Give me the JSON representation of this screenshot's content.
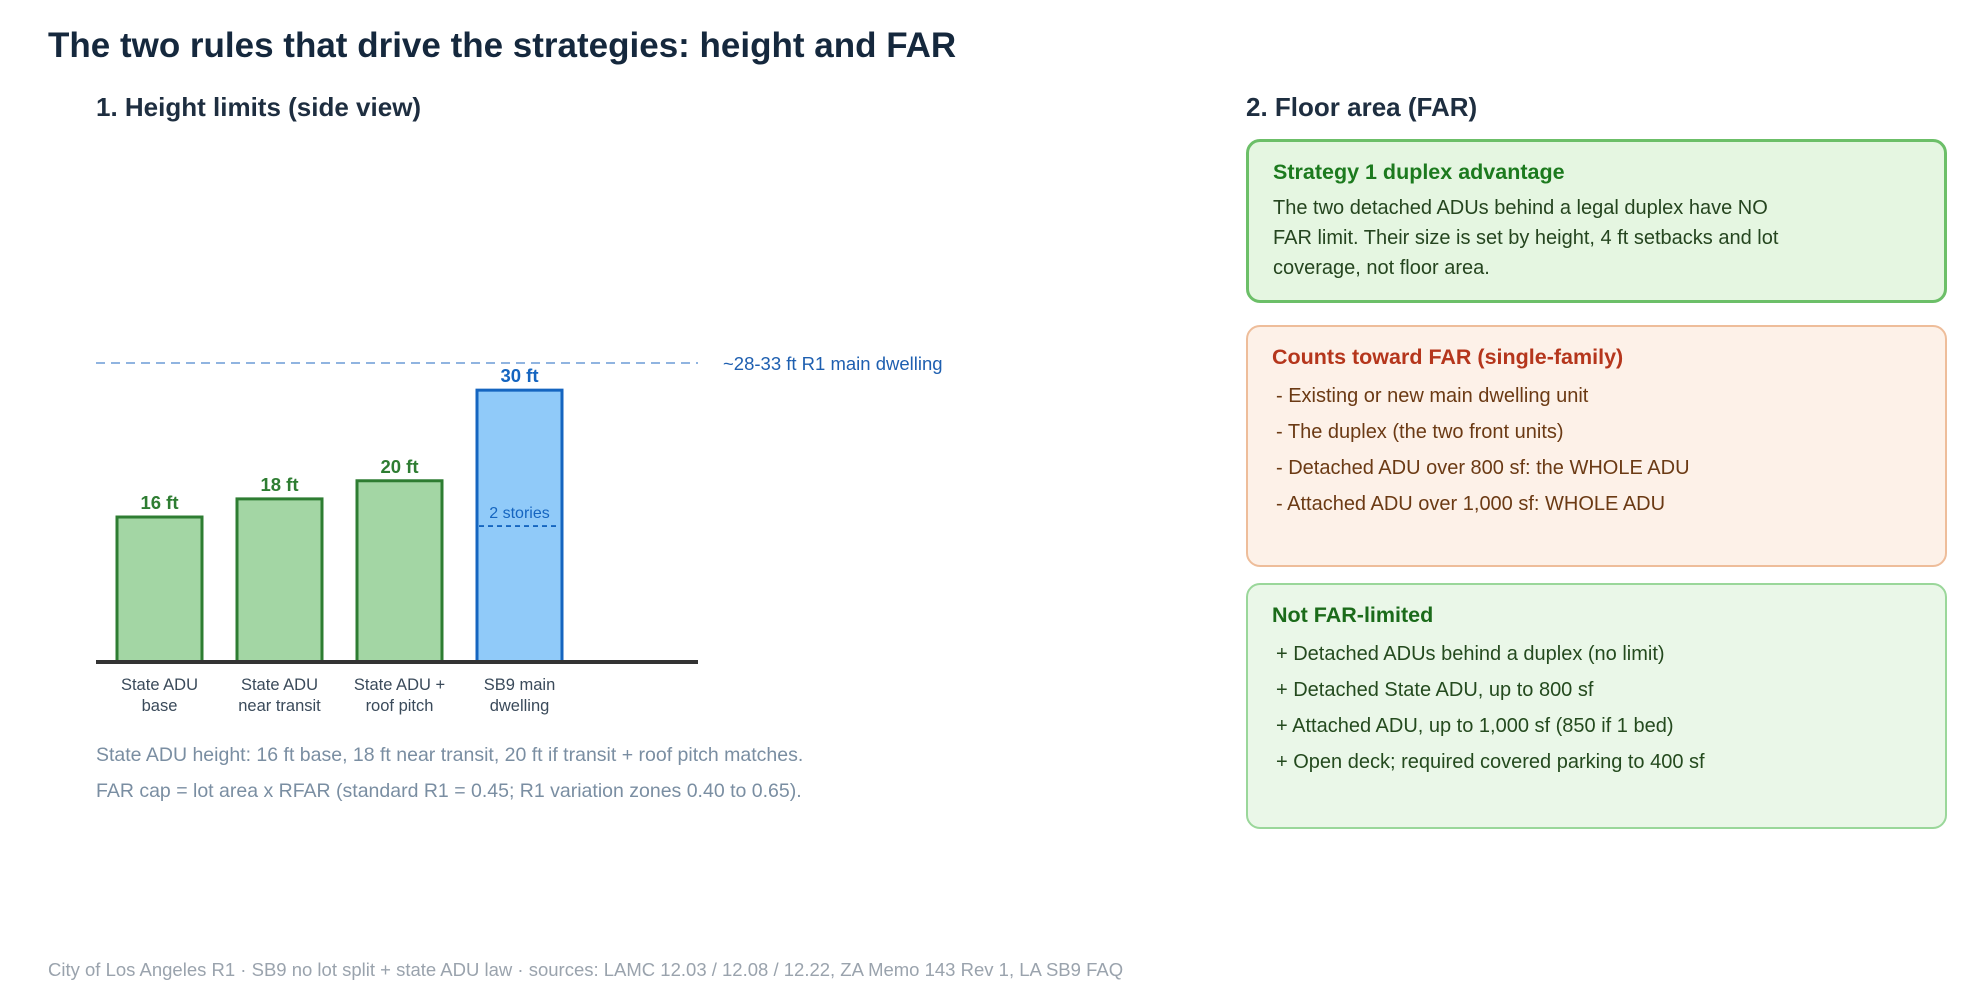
{
  "title": "The two rules that drive the strategies: height and FAR",
  "height_section": {
    "title": "1. Height limits (side view)",
    "notes": [
      "State ADU height: 16 ft base, 18 ft near transit, 20 ft if transit + roof pitch matches.",
      "FAR cap = lot area x RFAR (standard R1 = 0.45; R1 variation zones 0.40 to 0.65)."
    ]
  },
  "chart_data": {
    "type": "bar",
    "title": "",
    "xlabel": "",
    "ylabel": "",
    "ylim": [
      0,
      40.5
    ],
    "categories": [
      [
        "State ADU",
        "base"
      ],
      [
        "State ADU",
        "near transit"
      ],
      [
        "State ADU +",
        "roof pitch"
      ],
      [
        "SB9 main",
        "dwelling"
      ]
    ],
    "values": [
      16,
      18,
      20,
      30
    ],
    "value_labels": [
      "16 ft",
      "18 ft",
      "20 ft",
      "30 ft"
    ],
    "colors": {
      "adu_fill": "#a3d6a4",
      "adu_stroke": "#2e7d32",
      "adu_label": "#2e7d32",
      "main_fill": "#90caf9",
      "main_stroke": "#1565c0",
      "main_label": "#1565c0",
      "reference_line": "#90b4e0",
      "reference_text": "#1e5fb0",
      "ground": "#333333"
    },
    "bar_series": [
      "adu",
      "adu",
      "adu",
      "main"
    ],
    "reference_line": {
      "value": 33,
      "label": "~28-33 ft R1 main dwelling"
    },
    "stories_marker": {
      "value": 15,
      "label": "2 stories",
      "bar_index": 3
    },
    "grid": false,
    "legend": "none"
  },
  "far_section": {
    "title": "2. Floor area (FAR)",
    "boxes": [
      {
        "title": "Strategy 1 duplex advantage",
        "body": "The two detached ADUs behind a legal duplex have NO FAR limit. Their size is set by height, 4 ft setbacks and lot coverage, not floor area."
      },
      {
        "title": "Counts toward FAR (single-family)",
        "items": [
          "- Existing or new main dwelling unit",
          "- The duplex (the two front units)",
          "- Detached ADU over 800 sf: the WHOLE ADU",
          "- Attached ADU over 1,000 sf: WHOLE ADU"
        ]
      },
      {
        "title": "Not FAR-limited",
        "items": [
          "+ Detached ADUs behind a duplex (no limit)",
          "+ Detached State ADU, up to 800 sf",
          "+ Attached ADU, up to 1,000 sf (850 if 1 bed)",
          "+ Open deck; required covered parking to 400 sf"
        ]
      }
    ]
  },
  "footer": "City of Los Angeles R1 · SB9 no lot split + state ADU law · sources: LAMC 12.03 / 12.08 / 12.22, ZA Memo 143 Rev 1, LA SB9 FAQ"
}
